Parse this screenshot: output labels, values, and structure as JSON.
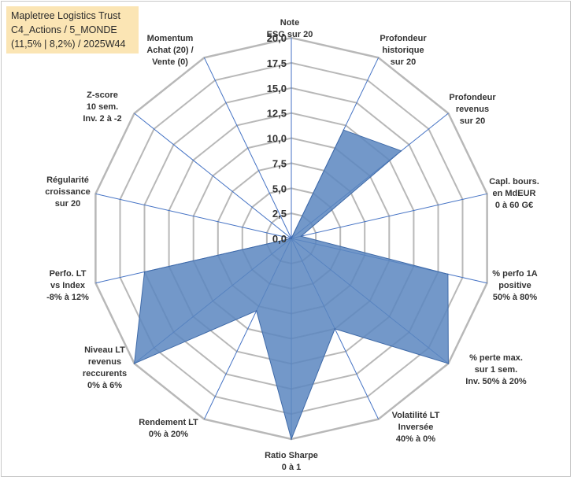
{
  "title": {
    "line1": "Mapletree Logistics Trust",
    "line2": "C4_Actions / 5_MONDE",
    "line3": "(11,5% | 8,2%) / 2025W44"
  },
  "chart_data": {
    "type": "radar",
    "title": "Mapletree Logistics Trust C4_Actions / 5_MONDE (11,5% | 8,2%) / 2025W44",
    "rmin": 0,
    "rmax": 20,
    "rings": 8,
    "tick_labels": [
      "0,0",
      "2,5",
      "5,0",
      "7,5",
      "10,0",
      "12,5",
      "15,0",
      "17,5",
      "20,0"
    ],
    "axes": [
      {
        "label": [
          "Note",
          "ESG sur 20"
        ],
        "value": 0
      },
      {
        "label": [
          "Profondeur",
          "historique",
          "sur 20"
        ],
        "value": 12
      },
      {
        "label": [
          "Profondeur",
          "revenus",
          "sur 20"
        ],
        "value": 14
      },
      {
        "label": [
          "Capl. bours.",
          "en MdEUR",
          "0 à 60 G€"
        ],
        "value": 1
      },
      {
        "label": [
          "% perfo 1A",
          "positive",
          "50% à 80%"
        ],
        "value": 16
      },
      {
        "label": [
          "% perte max.",
          "sur 1 sem.",
          "Inv. 50% à 20%"
        ],
        "value": 20
      },
      {
        "label": [
          "Volatilité LT",
          "Inversée",
          "40% à 0%"
        ],
        "value": 10
      },
      {
        "label": [
          "Ratio Sharpe",
          "0 à 1"
        ],
        "value": 20
      },
      {
        "label": [
          "Rendement LT",
          "0% à 20%"
        ],
        "value": 8
      },
      {
        "label": [
          "Niveau LT",
          "revenus",
          "reccurents",
          "0% à 6%"
        ],
        "value": 20
      },
      {
        "label": [
          "Perfo. LT",
          "vs Index",
          "-8% à 12%"
        ],
        "value": 15
      },
      {
        "label": [
          "Régularité",
          "croissance",
          "sur 20"
        ],
        "value": 0
      },
      {
        "label": [
          "Z-score",
          "10 sem.",
          "Inv. 2 à -2"
        ],
        "value": 0
      },
      {
        "label": [
          "Momentum",
          "Achat (20) /",
          "Vente (0)"
        ],
        "value": 0
      }
    ],
    "colors": {
      "fill": "#5b86c0",
      "stroke": "#3f6aa8",
      "grid": "#b8b8b8",
      "axis": "#4472c4"
    }
  }
}
